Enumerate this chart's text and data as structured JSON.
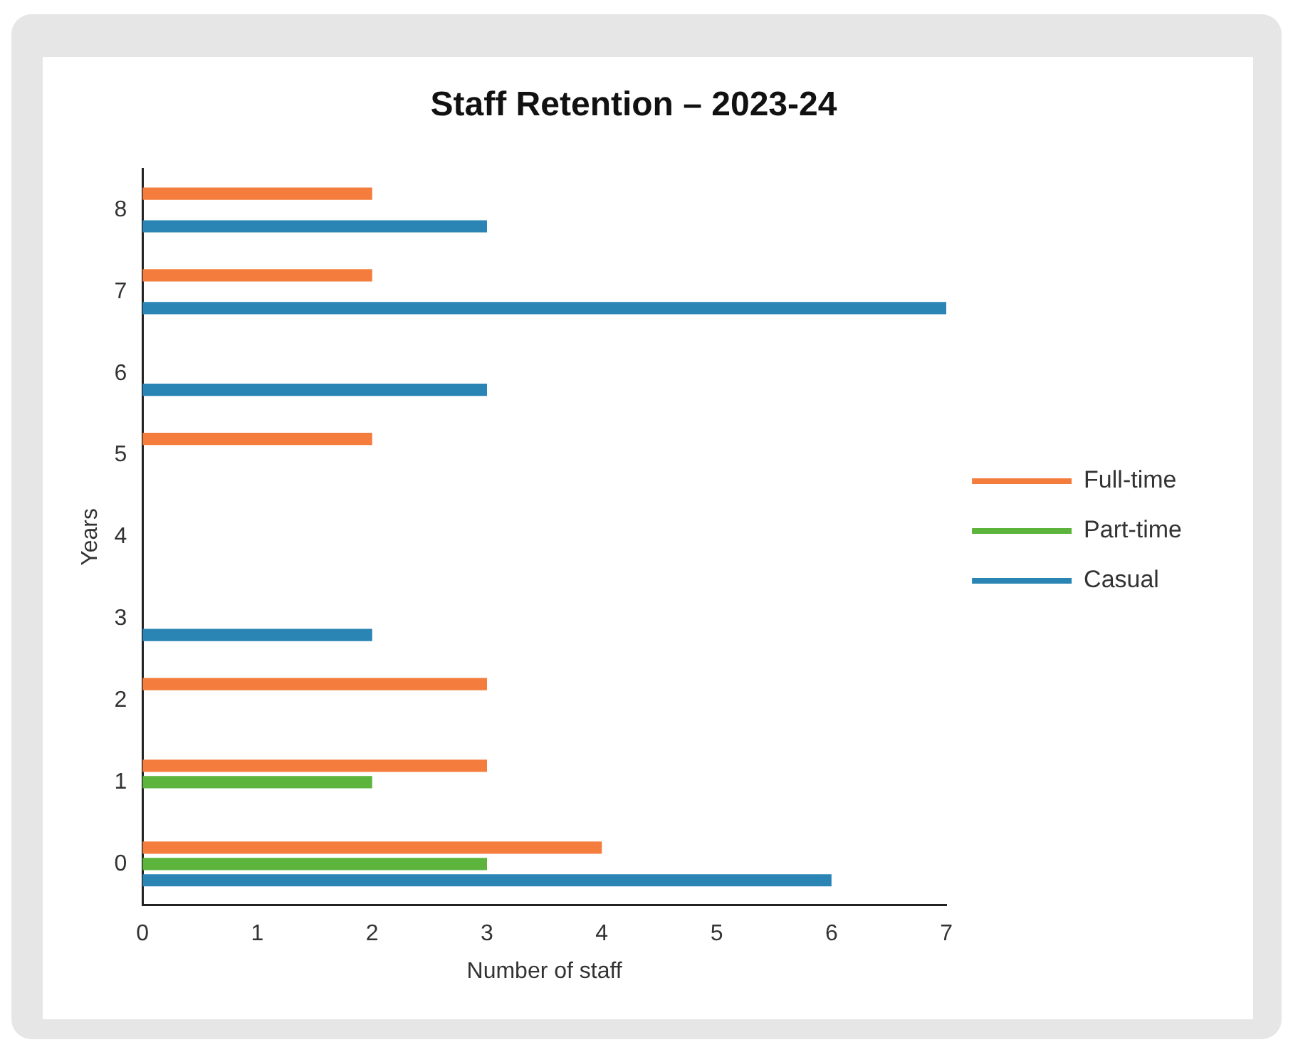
{
  "chart_data": {
    "type": "bar",
    "orientation": "horizontal",
    "title": "Staff Retention – 2023-24",
    "xlabel": "Number of staff",
    "ylabel": "Years",
    "categories": [
      "8",
      "7",
      "6",
      "5",
      "4",
      "3",
      "2",
      "1",
      "0"
    ],
    "series": [
      {
        "name": "Full-time",
        "color": "#f47c3c",
        "values": [
          2,
          2,
          0,
          2,
          0,
          0,
          3,
          3,
          4
        ]
      },
      {
        "name": "Part-time",
        "color": "#5cb43c",
        "values": [
          0,
          0,
          0,
          0,
          0,
          0,
          0,
          2,
          3
        ]
      },
      {
        "name": "Casual",
        "color": "#2a84b4",
        "values": [
          3,
          7,
          3,
          0,
          0,
          2,
          0,
          0,
          6
        ]
      }
    ],
    "xlim": [
      0,
      7
    ],
    "xticks": [
      0,
      1,
      2,
      3,
      4,
      5,
      6,
      7
    ],
    "grid": false,
    "legend": "right"
  }
}
